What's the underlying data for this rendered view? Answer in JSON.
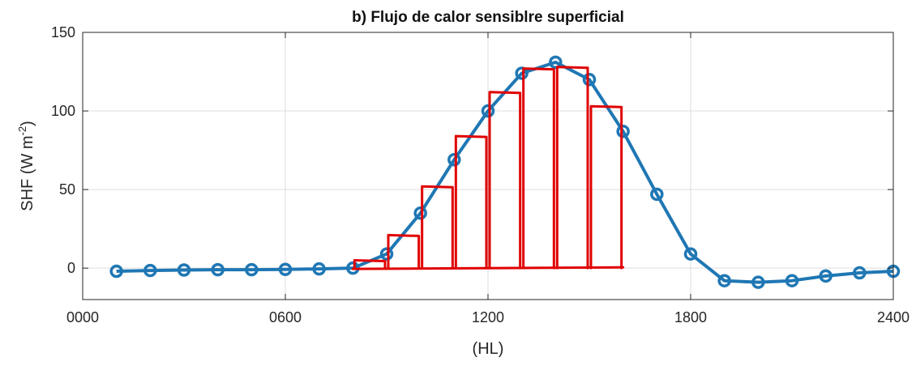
{
  "chart_data": {
    "type": "line",
    "title": "b) Flujo de calor sensiblre superficial",
    "xlabel": "(HL)",
    "ylabel": "SHF (W m",
    "ylabel_sup": "-2",
    "ylabel_close": ")",
    "xlim": [
      0,
      24
    ],
    "ylim": [
      -20,
      150
    ],
    "x_ticks": [
      {
        "value": 0,
        "label": "0000"
      },
      {
        "value": 6,
        "label": "0600"
      },
      {
        "value": 12,
        "label": "1200"
      },
      {
        "value": 18,
        "label": "1800"
      },
      {
        "value": 24,
        "label": "2400"
      }
    ],
    "y_ticks": [
      {
        "value": 0,
        "label": "0"
      },
      {
        "value": 50,
        "label": "50"
      },
      {
        "value": 100,
        "label": "100"
      },
      {
        "value": 150,
        "label": "150"
      }
    ],
    "grid": true,
    "series": [
      {
        "color": "#1f77b4",
        "x": [
          1,
          2,
          3,
          4,
          5,
          6,
          7,
          8,
          9,
          10,
          11,
          12,
          13,
          14,
          15,
          16,
          17,
          18,
          19,
          20,
          21,
          22,
          23,
          24
        ],
        "y": [
          -2,
          -1.5,
          -1.2,
          -1,
          -1,
          -0.8,
          -0.5,
          0,
          9,
          35,
          69,
          100,
          124,
          131,
          120,
          87,
          47,
          9,
          -8,
          -9,
          -8,
          -5,
          -3,
          -2
        ]
      }
    ],
    "annotation": {
      "color": "#e00000",
      "description_type": "hand-drawn rectangles",
      "bars": [
        {
          "x0": 8,
          "x1": 9,
          "top": 5
        },
        {
          "x0": 9,
          "x1": 10,
          "top": 21
        },
        {
          "x0": 10,
          "x1": 11,
          "top": 52
        },
        {
          "x0": 11,
          "x1": 12,
          "top": 84
        },
        {
          "x0": 12,
          "x1": 13,
          "top": 112
        },
        {
          "x0": 13,
          "x1": 14,
          "top": 127
        },
        {
          "x0": 14,
          "x1": 15,
          "top": 128
        },
        {
          "x0": 15,
          "x1": 16,
          "top": 103
        }
      ]
    }
  }
}
